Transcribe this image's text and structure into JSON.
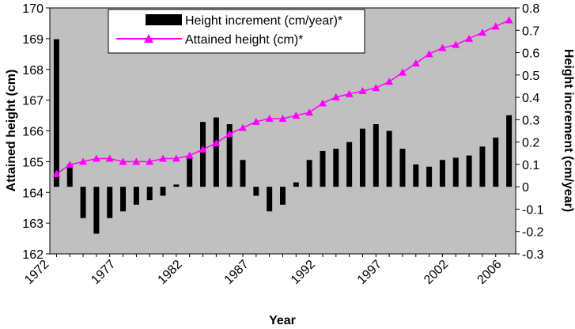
{
  "chart_data": {
    "type": "bar+line",
    "x": [
      1973,
      1974,
      1975,
      1976,
      1977,
      1978,
      1979,
      1980,
      1981,
      1982,
      1983,
      1984,
      1985,
      1986,
      1987,
      1988,
      1989,
      1990,
      1991,
      1992,
      1993,
      1994,
      1995,
      1996,
      1997,
      1998,
      1999,
      2000,
      2001,
      2002,
      2003,
      2004,
      2005,
      2006,
      2007
    ],
    "xticks": [
      "1972",
      "1977",
      "1982",
      "1987",
      "1992",
      "1997",
      "2002",
      "2006"
    ],
    "xlabel": "Year",
    "ylabel_left": "Attained height (cm)",
    "ylabel_right": "Height increment (cm/year)",
    "ylim_left": [
      162,
      170
    ],
    "ylim_right": [
      -0.3,
      0.8
    ],
    "yticks_left": [
      "162",
      "163",
      "164",
      "165",
      "166",
      "167",
      "168",
      "169",
      "170"
    ],
    "yticks_right": [
      "-0.3",
      "-0.2",
      "-0.1",
      "0",
      "0.1",
      "0.2",
      "0.3",
      "0.4",
      "0.5",
      "0.6",
      "0.7",
      "0.8"
    ],
    "legend_position": "top-center",
    "series": [
      {
        "name": "Height increment (cm/year)*",
        "type": "bar",
        "axis": "right",
        "color": "#000000",
        "values": [
          0.66,
          0.1,
          -0.14,
          -0.21,
          -0.14,
          -0.11,
          -0.08,
          -0.06,
          -0.04,
          0.01,
          0.13,
          0.29,
          0.31,
          0.28,
          0.12,
          -0.04,
          -0.11,
          -0.08,
          0.02,
          0.12,
          0.16,
          0.17,
          0.2,
          0.26,
          0.28,
          0.25,
          0.17,
          0.1,
          0.09,
          0.12,
          0.13,
          0.14,
          0.18,
          0.22,
          0.32
        ]
      },
      {
        "name": "Attained height (cm)*",
        "type": "line",
        "axis": "left",
        "color": "#ff00ff",
        "values": [
          164.6,
          164.9,
          165.0,
          165.1,
          165.1,
          165.0,
          165.0,
          165.0,
          165.1,
          165.1,
          165.2,
          165.4,
          165.6,
          165.9,
          166.1,
          166.3,
          166.4,
          166.4,
          166.5,
          166.6,
          166.9,
          167.1,
          167.2,
          167.3,
          167.4,
          167.6,
          167.9,
          168.2,
          168.5,
          168.7,
          168.8,
          169.0,
          169.2,
          169.4,
          169.6
        ]
      }
    ]
  },
  "colors": {
    "plot_background": "#c0c0c0",
    "bar": "#000000",
    "line": "#ff00ff"
  }
}
